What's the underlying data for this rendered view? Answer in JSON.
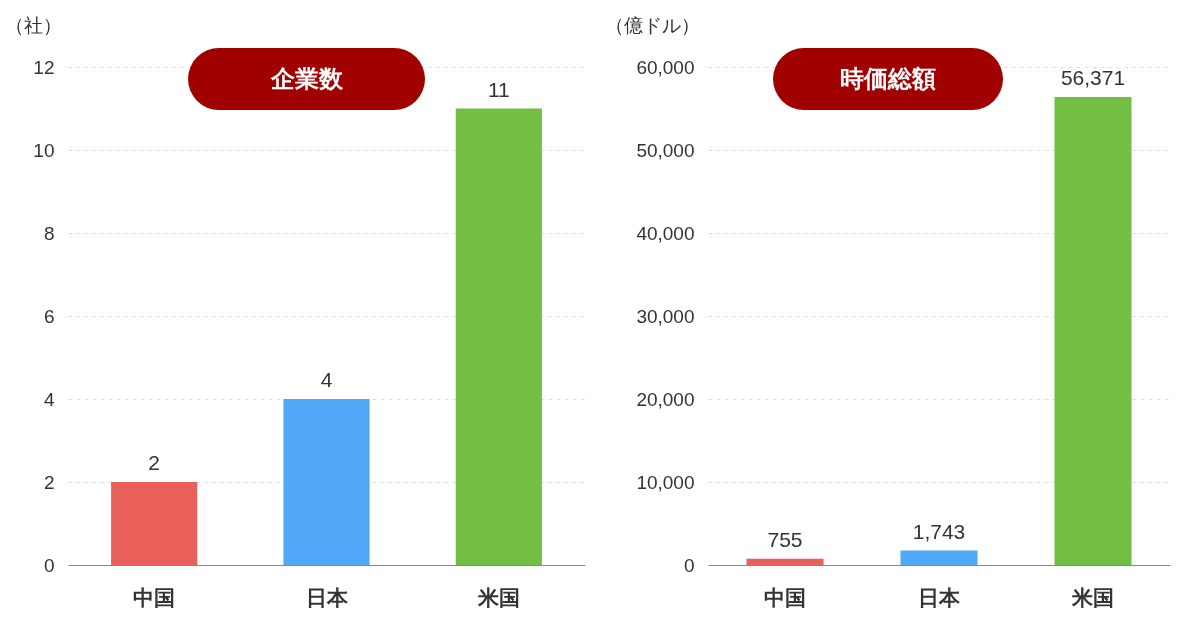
{
  "chart_data": [
    {
      "type": "bar",
      "title": "企業数",
      "ylabel": "（社）",
      "categories": [
        "中国",
        "日本",
        "米国"
      ],
      "values": [
        2,
        4,
        11
      ],
      "colors": [
        "#e9605a",
        "#52a8f8",
        "#72bf44"
      ],
      "ylim": [
        0,
        12
      ],
      "yticks": [
        0,
        2,
        4,
        6,
        8,
        10,
        12
      ],
      "grid": "y",
      "data_labels": true
    },
    {
      "type": "bar",
      "title": "時価総額",
      "ylabel": "（億ドル）",
      "categories": [
        "中国",
        "日本",
        "米国"
      ],
      "values": [
        755,
        1743,
        56371
      ],
      "value_labels": [
        "755",
        "1,743",
        "56,371"
      ],
      "colors": [
        "#e9605a",
        "#52a8f8",
        "#72bf44"
      ],
      "ylim": [
        0,
        60000
      ],
      "yticks": [
        0,
        {
          "value": 10000,
          "label": "10,000"
        },
        {
          "value": 20000,
          "label": "20,000"
        },
        {
          "value": 30000,
          "label": "30,000"
        },
        {
          "value": 40000,
          "label": "40,000"
        },
        {
          "value": 50000,
          "label": "50,000"
        },
        {
          "value": 60000,
          "label": "60,000"
        }
      ],
      "grid": "y"
    }
  ]
}
